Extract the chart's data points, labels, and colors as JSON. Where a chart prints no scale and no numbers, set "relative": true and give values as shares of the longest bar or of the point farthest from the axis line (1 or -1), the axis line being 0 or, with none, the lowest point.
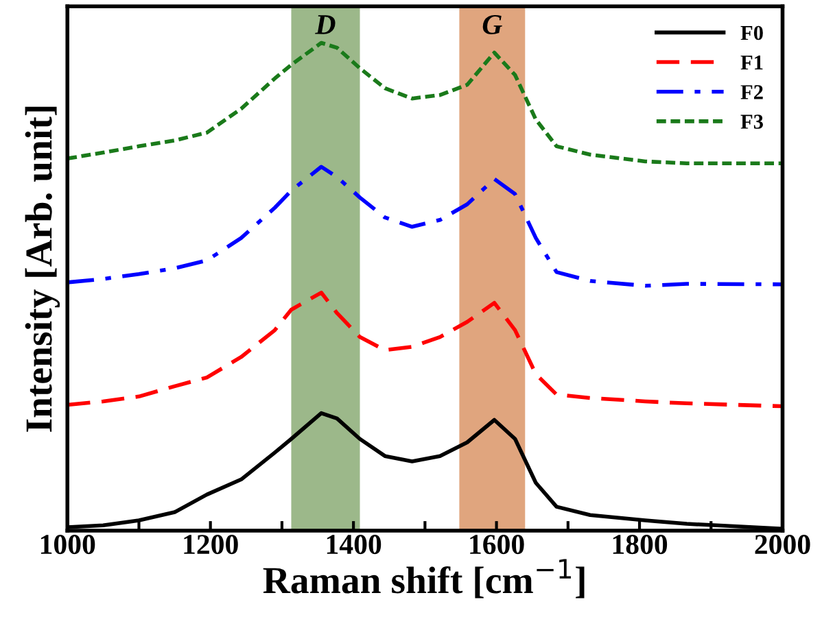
{
  "chart_data": {
    "type": "line",
    "xlabel": "Raman shift [cm$^{−1}$]",
    "ylabel": "Intensity [Arb. unit]",
    "relative": true,
    "tick_labels": "x",
    "legend": "top right",
    "grid": false,
    "x": [
      1000,
      1050,
      1100,
      1150,
      1195,
      1243,
      1290,
      1313,
      1355,
      1377,
      1409,
      1444,
      1482,
      1521,
      1559,
      1597,
      1626,
      1655,
      1684,
      1731,
      1808,
      1866,
      2000
    ],
    "xlim": [
      1000,
      2000
    ],
    "xticks": [
      1000,
      {
        "value": 1100,
        "label": null
      },
      1200,
      {
        "value": 1300,
        "label": null
      },
      1400,
      {
        "value": 1500,
        "label": null
      },
      1600,
      {
        "value": 1700,
        "label": null
      },
      1800,
      {
        "value": 1900,
        "label": null
      },
      2000
    ],
    "bands": [
      {
        "axis": "x",
        "from": 1313,
        "to": 1409,
        "label": "D",
        "color": "#9cb88a"
      },
      {
        "axis": "x",
        "from": 1548,
        "to": 1640,
        "label": "G",
        "color": "#e0a57e"
      }
    ],
    "series": [
      {
        "name": "F0",
        "color": "#000000",
        "line_style": "solid",
        "values": [
          0.007,
          0.011,
          0.021,
          0.038,
          0.074,
          0.105,
          0.16,
          0.188,
          0.241,
          0.23,
          0.188,
          0.153,
          0.142,
          0.153,
          0.181,
          0.227,
          0.188,
          0.098,
          0.049,
          0.032,
          0.021,
          0.014,
          0.004
        ]
      },
      {
        "name": "F1",
        "color": "#ff0000",
        "line_style": "dashed",
        "values": [
          0.258,
          0.265,
          0.275,
          0.296,
          0.314,
          0.356,
          0.411,
          0.453,
          0.488,
          0.446,
          0.397,
          0.37,
          0.377,
          0.397,
          0.428,
          0.467,
          0.411,
          0.321,
          0.279,
          0.272,
          0.265,
          0.261,
          0.255
        ]
      },
      {
        "name": "F2",
        "color": "#0000ff",
        "line_style": "dashdot",
        "values": [
          0.509,
          0.516,
          0.526,
          0.538,
          0.554,
          0.6,
          0.662,
          0.697,
          0.746,
          0.725,
          0.683,
          0.642,
          0.623,
          0.637,
          0.669,
          0.721,
          0.69,
          0.6,
          0.53,
          0.512,
          0.502,
          0.506,
          0.505
        ]
      },
      {
        "name": "F3",
        "color": "#1a7a1a",
        "line_style": "dotted",
        "values": [
          0.763,
          0.775,
          0.788,
          0.8,
          0.816,
          0.865,
          0.927,
          0.955,
          1.0,
          0.99,
          0.948,
          0.907,
          0.886,
          0.893,
          0.914,
          0.98,
          0.934,
          0.843,
          0.788,
          0.771,
          0.757,
          0.753,
          0.753
        ]
      }
    ]
  }
}
